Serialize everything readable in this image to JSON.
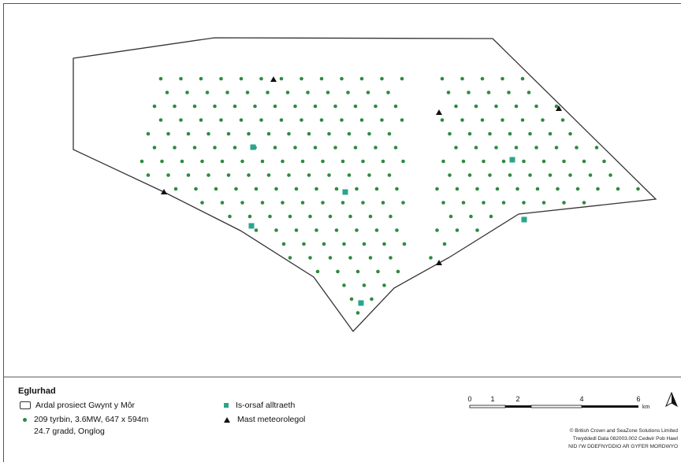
{
  "legend": {
    "title": "Eglurhad",
    "project_area": "Ardal prosiect Gwynt y Môr",
    "turbines_line1": "209 tyrbin, 3.6MW, 647 x 594m",
    "turbines_line2": "24.7 gradd, Onglog",
    "substation": "Is-orsaf alltraeth",
    "met_mast": "Mast meteorolegol"
  },
  "scale_bar": {
    "tick_labels": [
      "0",
      "1",
      "2",
      "4",
      "6"
    ],
    "unit": "km"
  },
  "copyright": {
    "line1": "© British Crown and SeaZone Solutions Limited",
    "line2": "Trwyddedl Data 082003.002 Cedwir Pob Hawl",
    "line3": "NID I'W DDEFNYDDIO AR GYFER MORDWYO"
  },
  "colors": {
    "turbine": "#2e8b3e",
    "substation": "#2aa58c",
    "met_mast": "#111111",
    "outline": "#333333"
  }
}
